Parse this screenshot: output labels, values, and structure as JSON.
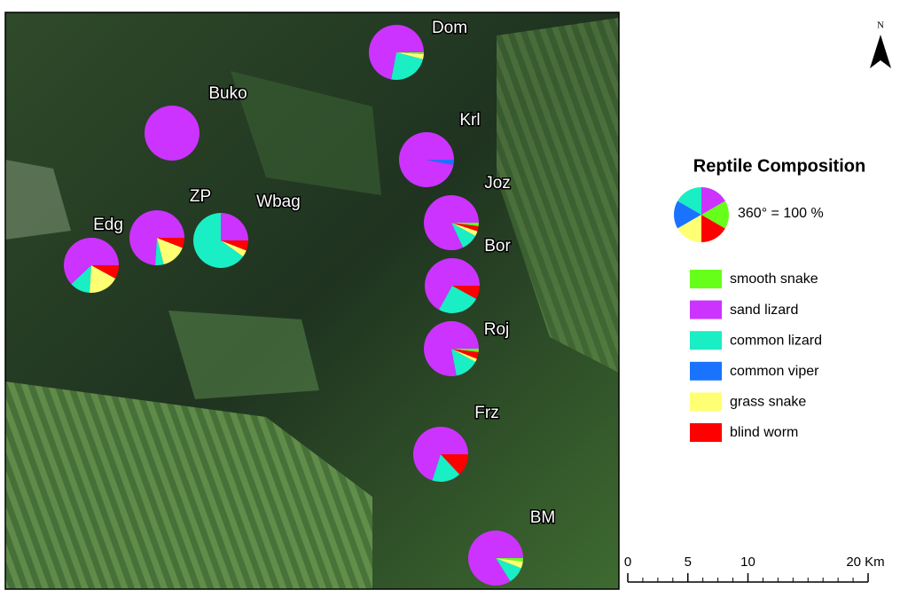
{
  "map": {
    "title": "Reptile Composition",
    "legend_note": "360° = 100 %",
    "north": "N",
    "species": [
      {
        "name": "smooth snake",
        "color": "#66ff1a"
      },
      {
        "name": "sand lizard",
        "color": "#cc33ff"
      },
      {
        "name": "common lizard",
        "color": "#1aeec4"
      },
      {
        "name": "common viper",
        "color": "#1a73ff"
      },
      {
        "name": "grass snake",
        "color": "#ffff73"
      },
      {
        "name": "blind worm",
        "color": "#ff0000"
      }
    ],
    "sites": [
      {
        "name": "Dom",
        "values": [
          1,
          72,
          24,
          0,
          3,
          0
        ]
      },
      {
        "name": "Buko",
        "values": [
          0,
          100,
          0,
          0,
          0,
          0
        ]
      },
      {
        "name": "Krl",
        "values": [
          0,
          97,
          0,
          3,
          0,
          0
        ]
      },
      {
        "name": "Joz",
        "values": [
          2,
          82,
          10,
          0,
          3,
          3
        ]
      },
      {
        "name": "ZP",
        "values": [
          0,
          74,
          5,
          0,
          15,
          6
        ]
      },
      {
        "name": "Wbag",
        "values": [
          0,
          25,
          65,
          0,
          4,
          6
        ]
      },
      {
        "name": "Edg",
        "values": [
          0,
          62,
          12,
          0,
          18,
          8
        ]
      },
      {
        "name": "Bor",
        "values": [
          0,
          67,
          25,
          0,
          0,
          8
        ]
      },
      {
        "name": "Roj",
        "values": [
          2,
          78,
          14,
          0,
          2,
          4
        ]
      },
      {
        "name": "Frz",
        "values": [
          0,
          70,
          17,
          0,
          0,
          13
        ]
      },
      {
        "name": "BM",
        "values": [
          2,
          84,
          10,
          0,
          4,
          0
        ]
      }
    ],
    "scale_ticks": [
      0,
      5,
      10,
      {
        "value": 20,
        "label": "20 Km"
      }
    ]
  }
}
